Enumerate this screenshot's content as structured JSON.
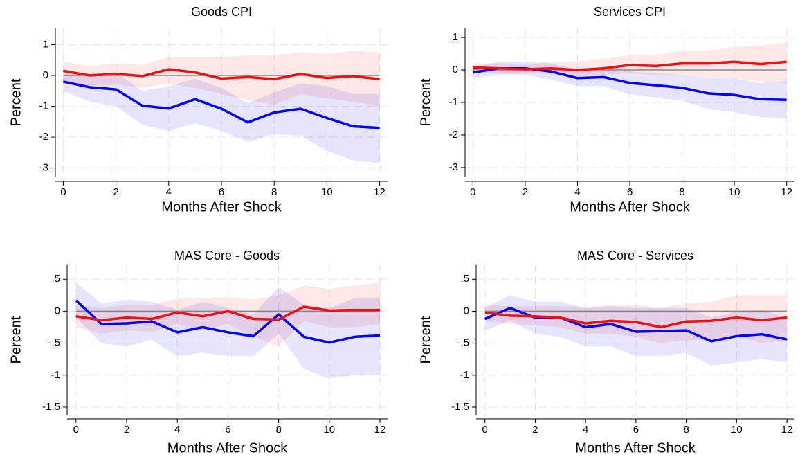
{
  "chart_data": [
    {
      "type": "line",
      "title": "Goods CPI",
      "xlabel": "Months After Shock",
      "ylabel": "Percent",
      "x": [
        0,
        1,
        2,
        3,
        4,
        5,
        6,
        7,
        8,
        9,
        10,
        11,
        12
      ],
      "xlim": [
        -0.3,
        12.3
      ],
      "xticks": [
        0,
        2,
        4,
        6,
        8,
        10,
        12
      ],
      "ylim": [
        -3.3,
        1.55
      ],
      "yticks": [
        -3,
        -2,
        -1,
        0,
        1
      ],
      "grid": true,
      "hline": 0,
      "series": [
        {
          "color": "#0000ff",
          "values": [
            -0.2,
            -0.38,
            -0.45,
            -0.98,
            -1.07,
            -0.77,
            -1.08,
            -1.52,
            -1.2,
            -1.08,
            -1.38,
            -1.65,
            -1.7
          ],
          "lower": [
            -0.5,
            -0.85,
            -1.0,
            -1.6,
            -1.8,
            -1.55,
            -1.8,
            -2.15,
            -1.9,
            -1.95,
            -2.45,
            -2.75,
            -2.85
          ],
          "upper": [
            0.15,
            0.05,
            0.1,
            -0.5,
            -0.35,
            -0.1,
            -0.4,
            -0.9,
            -0.55,
            -0.25,
            -0.35,
            -0.6,
            -0.6
          ]
        },
        {
          "color": "#ee1111",
          "values": [
            0.15,
            0.0,
            0.05,
            -0.02,
            0.2,
            0.1,
            -0.1,
            -0.05,
            -0.12,
            0.05,
            -0.08,
            -0.02,
            -0.12
          ],
          "lower": [
            -0.2,
            -0.35,
            -0.3,
            -0.4,
            -0.25,
            -0.4,
            -0.6,
            -0.8,
            -0.95,
            -0.6,
            -0.75,
            -0.85,
            -1.0
          ],
          "upper": [
            0.45,
            0.3,
            0.4,
            0.35,
            0.6,
            0.6,
            0.6,
            0.65,
            0.65,
            0.75,
            0.7,
            0.8,
            0.75
          ]
        }
      ]
    },
    {
      "type": "line",
      "title": "Services CPI",
      "xlabel": "Months After Shock",
      "ylabel": "Percent",
      "x": [
        0,
        1,
        2,
        3,
        4,
        5,
        6,
        7,
        8,
        9,
        10,
        11,
        12
      ],
      "xlim": [
        -0.3,
        12.3
      ],
      "xticks": [
        0,
        2,
        4,
        6,
        8,
        10,
        12
      ],
      "ylim": [
        -3.3,
        1.3
      ],
      "yticks": [
        -3,
        -2,
        -1,
        0,
        1
      ],
      "grid": true,
      "hline": 0,
      "series": [
        {
          "color": "#0000ff",
          "values": [
            -0.08,
            0.05,
            0.05,
            -0.05,
            -0.25,
            -0.22,
            -0.4,
            -0.47,
            -0.55,
            -0.72,
            -0.77,
            -0.9,
            -0.92
          ],
          "lower": [
            -0.25,
            -0.15,
            -0.15,
            -0.3,
            -0.5,
            -0.5,
            -0.75,
            -0.85,
            -0.95,
            -1.2,
            -1.3,
            -1.45,
            -1.5
          ],
          "upper": [
            0.1,
            0.25,
            0.25,
            0.2,
            0.0,
            0.05,
            -0.05,
            -0.1,
            -0.15,
            -0.25,
            -0.25,
            -0.4,
            -0.35
          ]
        },
        {
          "color": "#ee1111",
          "values": [
            0.08,
            0.05,
            0.02,
            0.05,
            0.0,
            0.05,
            0.15,
            0.12,
            0.2,
            0.2,
            0.25,
            0.18,
            0.25
          ],
          "lower": [
            -0.05,
            -0.1,
            -0.1,
            -0.1,
            -0.2,
            -0.15,
            -0.1,
            -0.15,
            -0.15,
            -0.25,
            -0.25,
            -0.35,
            -0.4
          ],
          "upper": [
            0.2,
            0.2,
            0.15,
            0.25,
            0.25,
            0.35,
            0.45,
            0.45,
            0.6,
            0.6,
            0.7,
            0.75,
            0.85
          ]
        }
      ]
    },
    {
      "type": "line",
      "title": "MAS Core - Goods",
      "xlabel": "Months After Shock",
      "ylabel": "Percent",
      "x": [
        0,
        1,
        2,
        3,
        4,
        5,
        6,
        7,
        8,
        9,
        10,
        11,
        12
      ],
      "xlim": [
        -0.35,
        12.3
      ],
      "xticks": [
        0,
        2,
        4,
        6,
        8,
        10,
        12
      ],
      "ylim": [
        -1.63,
        0.73
      ],
      "yticks": [
        {
          "value": -1.5,
          "label": "-1.5"
        },
        -1,
        {
          "value": -0.5,
          "label": "-.5"
        },
        0,
        {
          "value": 0.5,
          "label": ".5"
        }
      ],
      "grid": true,
      "hline": 0,
      "series": [
        {
          "color": "#0000ff",
          "values": [
            0.17,
            -0.2,
            -0.19,
            -0.16,
            -0.33,
            -0.25,
            -0.33,
            -0.39,
            -0.05,
            -0.4,
            -0.49,
            -0.4,
            -0.38
          ],
          "lower": [
            -0.1,
            -0.5,
            -0.55,
            -0.45,
            -0.7,
            -0.65,
            -0.7,
            -0.7,
            -0.35,
            -0.9,
            -1.05,
            -1.0,
            -1.0
          ],
          "upper": [
            0.45,
            0.12,
            0.18,
            0.15,
            0.02,
            0.15,
            0.05,
            -0.05,
            0.38,
            0.1,
            0.05,
            0.2,
            0.22
          ]
        },
        {
          "color": "#ee1111",
          "values": [
            -0.08,
            -0.14,
            -0.1,
            -0.12,
            -0.02,
            -0.08,
            0.0,
            -0.12,
            -0.13,
            0.07,
            0.01,
            0.02,
            0.02
          ],
          "lower": [
            -0.25,
            -0.35,
            -0.3,
            -0.32,
            -0.2,
            -0.3,
            -0.2,
            -0.4,
            -0.55,
            -0.15,
            -0.25,
            -0.25,
            -0.2
          ],
          "upper": [
            0.1,
            0.05,
            0.1,
            0.1,
            0.2,
            0.2,
            0.22,
            0.18,
            0.25,
            0.4,
            0.35,
            0.4,
            0.45
          ]
        }
      ]
    },
    {
      "type": "line",
      "title": "MAS Core - Services",
      "xlabel": "Months After Shock",
      "ylabel": "Percent",
      "x": [
        0,
        1,
        2,
        3,
        4,
        5,
        6,
        7,
        8,
        9,
        10,
        11,
        12
      ],
      "xlim": [
        -0.35,
        12.3
      ],
      "xticks": [
        0,
        2,
        4,
        6,
        8,
        10,
        12
      ],
      "ylim": [
        -1.63,
        0.73
      ],
      "yticks": [
        {
          "value": -1.5,
          "label": "-1.5"
        },
        -1,
        {
          "value": -0.5,
          "label": "-.5"
        },
        0,
        {
          "value": 0.5,
          "label": ".5"
        }
      ],
      "grid": true,
      "hline": 0,
      "series": [
        {
          "color": "#0000ff",
          "values": [
            -0.12,
            0.05,
            -0.1,
            -0.1,
            -0.25,
            -0.2,
            -0.32,
            -0.31,
            -0.3,
            -0.47,
            -0.39,
            -0.36,
            -0.44
          ],
          "lower": [
            -0.3,
            -0.15,
            -0.35,
            -0.4,
            -0.55,
            -0.55,
            -0.7,
            -0.7,
            -0.65,
            -0.85,
            -0.8,
            -0.75,
            -0.8
          ],
          "upper": [
            0.05,
            0.25,
            0.15,
            0.15,
            0.05,
            0.08,
            0.05,
            0.05,
            0.05,
            -0.1,
            0.0,
            0.02,
            -0.1
          ]
        },
        {
          "color": "#ee1111",
          "values": [
            -0.02,
            -0.07,
            -0.08,
            -0.1,
            -0.19,
            -0.15,
            -0.17,
            -0.25,
            -0.16,
            -0.15,
            -0.1,
            -0.14,
            -0.1
          ],
          "lower": [
            -0.15,
            -0.2,
            -0.22,
            -0.25,
            -0.35,
            -0.35,
            -0.4,
            -0.5,
            -0.45,
            -0.45,
            -0.4,
            -0.5,
            -0.45
          ],
          "upper": [
            0.1,
            0.08,
            0.08,
            0.08,
            0.05,
            0.1,
            0.1,
            0.05,
            0.12,
            0.15,
            0.25,
            0.25,
            0.25
          ]
        }
      ]
    }
  ]
}
